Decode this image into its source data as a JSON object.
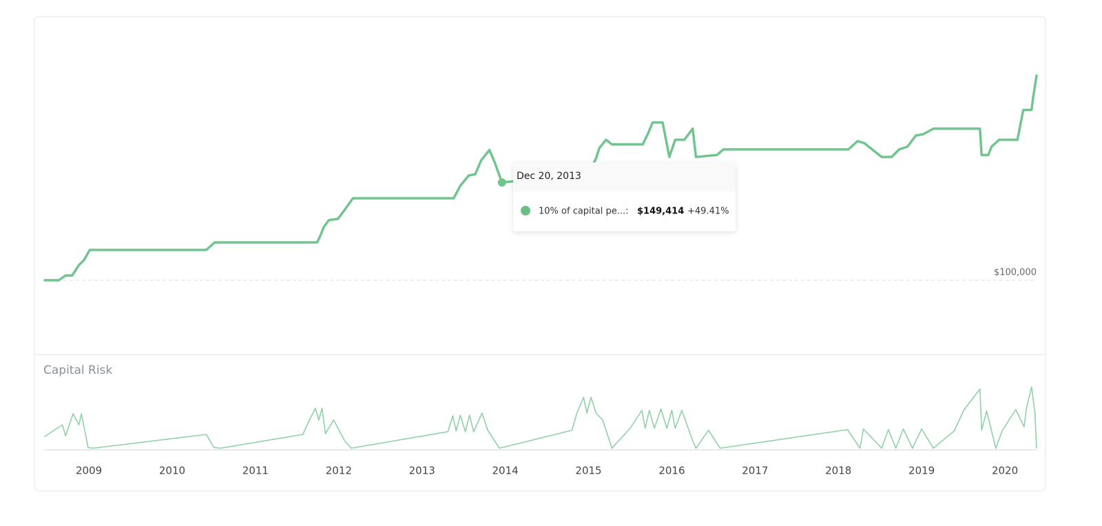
{
  "chart_data": [
    {
      "type": "line",
      "x": [
        2008.47,
        2008.64,
        2008.72,
        2008.8,
        2008.88,
        2008.94,
        2009.01,
        2010.41,
        2010.51,
        2011.74,
        2011.78,
        2011.82,
        2011.88,
        2011.99,
        2012.07,
        2012.17,
        2013.38,
        2013.46,
        2013.56,
        2013.64,
        2013.71,
        2013.81,
        2013.87,
        2013.96,
        2014.22,
        2014.63,
        2015.01,
        2015.09,
        2015.13,
        2015.21,
        2015.28,
        2015.65,
        2015.71,
        2015.77,
        2015.89,
        2015.97,
        2016.04,
        2016.15,
        2016.25,
        2016.29,
        2016.54,
        2016.62,
        2018.12,
        2018.23,
        2018.31,
        2018.52,
        2018.64,
        2018.73,
        2018.83,
        2018.93,
        2019.02,
        2019.14,
        2019.7,
        2019.72,
        2019.8,
        2019.84,
        2019.93,
        2020.15,
        2020.22,
        2020.32,
        2020.34,
        2020.38
      ],
      "series": [
        {
          "name": "10% of capital pe...:",
          "color": "#72c48f",
          "values": [
            100000,
            100000,
            102400,
            102400,
            107700,
            110100,
            115300,
            115300,
            119100,
            119100,
            122600,
            126800,
            130300,
            131000,
            135500,
            141400,
            141400,
            147700,
            152900,
            153600,
            160600,
            165800,
            159900,
            149414,
            150500,
            151900,
            154600,
            161600,
            166800,
            171000,
            168600,
            168600,
            173800,
            179700,
            179700,
            162300,
            171000,
            171000,
            176600,
            162300,
            163300,
            166100,
            166100,
            170300,
            169300,
            162300,
            162300,
            166100,
            167500,
            173100,
            173800,
            176600,
            176600,
            163300,
            163300,
            167500,
            171000,
            171000,
            186000,
            186000,
            192900,
            203400
          ]
        }
      ],
      "xlim": [
        2008.47,
        2020.38
      ],
      "ylim": [
        65900,
        227700
      ],
      "yticks": [
        {
          "value": 100000,
          "label": "$100,000"
        }
      ],
      "tooltip": {
        "date": "Dec 20, 2013",
        "value": "$149,414",
        "change": "+49.41%"
      }
    },
    {
      "type": "line",
      "title": "Capital Risk",
      "x": [
        2008.47,
        2008.68,
        2008.72,
        2008.81,
        2008.88,
        2008.91,
        2008.99,
        2009.05,
        2010.41,
        2010.5,
        2010.58,
        2011.57,
        2011.64,
        2011.72,
        2011.76,
        2011.8,
        2011.84,
        2011.94,
        2012.07,
        2012.15,
        2013.31,
        2013.37,
        2013.41,
        2013.46,
        2013.52,
        2013.57,
        2013.62,
        2013.72,
        2013.79,
        2013.93,
        2014.8,
        2014.86,
        2014.94,
        2014.98,
        2015.03,
        2015.09,
        2015.17,
        2015.28,
        2015.5,
        2015.64,
        2015.68,
        2015.73,
        2015.79,
        2015.87,
        2015.94,
        2016.0,
        2016.04,
        2016.12,
        2016.25,
        2016.29,
        2016.44,
        2016.58,
        2018.11,
        2018.26,
        2018.3,
        2018.52,
        2018.6,
        2018.69,
        2018.78,
        2018.89,
        2019.0,
        2019.14,
        2019.39,
        2019.51,
        2019.7,
        2019.72,
        2019.78,
        2019.89,
        2019.97,
        2020.13,
        2020.23,
        2020.26,
        2020.32,
        2020.36,
        2020.38
      ],
      "series": [
        {
          "color": "#8fd1a6",
          "values": [
            19,
            36,
            20,
            52,
            36,
            52,
            3,
            2,
            22,
            3,
            2,
            22,
            41,
            60,
            43,
            60,
            23,
            43,
            13,
            2,
            26,
            49,
            27,
            50,
            26,
            50,
            26,
            53,
            28,
            2,
            28,
            53,
            76,
            53,
            76,
            53,
            43,
            2,
            31,
            57,
            31,
            57,
            31,
            59,
            31,
            57,
            31,
            57,
            13,
            2,
            28,
            2,
            29,
            2,
            30,
            2,
            29,
            2,
            30,
            2,
            30,
            2,
            27,
            58,
            88,
            28,
            56,
            2,
            28,
            58,
            33,
            61,
            91,
            53,
            2
          ]
        }
      ],
      "xlim": [
        2008.47,
        2020.38
      ],
      "ylim": [
        0,
        100
      ],
      "xticks": [
        2009,
        2010,
        2011,
        2012,
        2013,
        2014,
        2015,
        2016,
        2017,
        2018,
        2019,
        2020
      ]
    }
  ]
}
